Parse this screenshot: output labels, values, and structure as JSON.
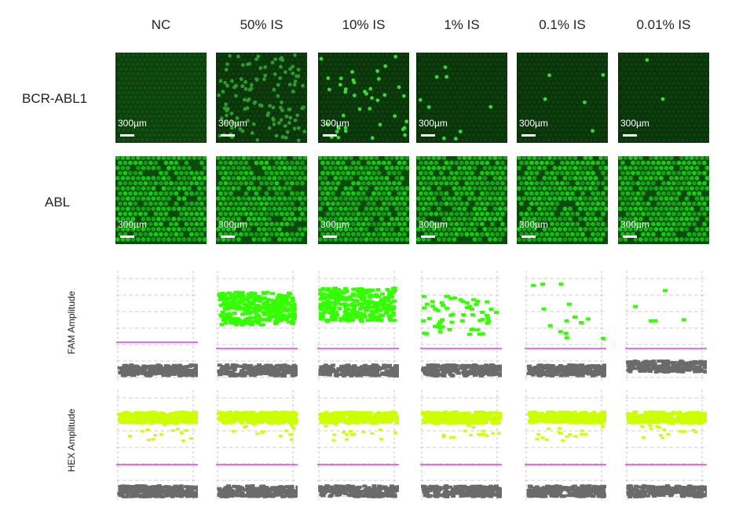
{
  "columns": [
    "NC",
    "50% IS",
    "10% IS",
    "1% IS",
    "0.1% IS",
    "0.01% IS"
  ],
  "rows": {
    "bcr_abl1": "BCR-ABL1",
    "abl": "ABL"
  },
  "scale_label": "300µm",
  "plot_labels": {
    "fam": "FAM Amplitude",
    "hex": "HEX Amplitude"
  },
  "colors": {
    "fam_positive": "#33ff00",
    "hex_positive": "#ccff00",
    "negative": "#6b6b6b",
    "threshold": "#e040e0",
    "fluor_dark": "#0a3a0a",
    "fluor_bright": "#1fb01f"
  },
  "positive_density": {
    "bcr_abl1": [
      0,
      0.5,
      0.1,
      0.01,
      0.001,
      0.0001
    ],
    "abl": [
      1,
      1,
      1,
      1,
      1,
      1
    ]
  }
}
